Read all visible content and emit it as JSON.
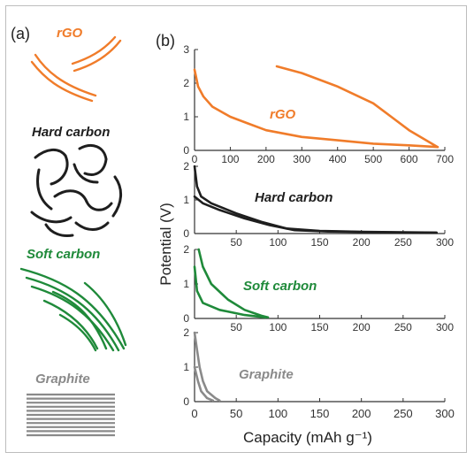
{
  "panel_labels": {
    "a": "(a)",
    "b": "(b)"
  },
  "colors": {
    "rgo": "#f07c2a",
    "hard": "#1e1e1e",
    "soft": "#1f8a3a",
    "graphite": "#8a8a8a",
    "axis": "#333333"
  },
  "materials": [
    {
      "key": "rgo",
      "label": "rGO",
      "color": "#f07c2a",
      "icon": "rgo-sheets-icon"
    },
    {
      "key": "hard",
      "label": "Hard carbon",
      "color": "#1e1e1e",
      "icon": "hard-carbon-network-icon"
    },
    {
      "key": "soft",
      "label": "Soft carbon",
      "color": "#1f8a3a",
      "icon": "soft-carbon-layers-icon"
    },
    {
      "key": "graphite",
      "label": "Graphite",
      "color": "#8a8a8a",
      "icon": "graphite-stack-icon"
    }
  ],
  "chart_data": {
    "type": "line",
    "xlabel": "Capacity (mAh g⁻¹)",
    "ylabel": "Potential (V)",
    "grid": false,
    "panels": [
      {
        "key": "rgo",
        "label": "rGO",
        "color": "#f07c2a",
        "xlim": [
          0,
          700
        ],
        "ylim": [
          0,
          3
        ],
        "xticks": [
          0,
          100,
          200,
          300,
          400,
          500,
          600,
          700
        ],
        "yticks": [
          0,
          1,
          2,
          3
        ],
        "series": [
          {
            "points": [
              [
                0,
                2.4
              ],
              [
                10,
                1.9
              ],
              [
                25,
                1.6
              ],
              [
                50,
                1.3
              ],
              [
                100,
                1.0
              ],
              [
                150,
                0.8
              ],
              [
                200,
                0.6
              ],
              [
                300,
                0.4
              ],
              [
                400,
                0.3
              ],
              [
                500,
                0.2
              ],
              [
                600,
                0.15
              ],
              [
                680,
                0.1
              ]
            ]
          },
          {
            "points": [
              [
                230,
                2.5
              ],
              [
                300,
                2.3
              ],
              [
                400,
                1.9
              ],
              [
                500,
                1.4
              ],
              [
                550,
                1.0
              ],
              [
                600,
                0.6
              ],
              [
                680,
                0.1
              ]
            ]
          }
        ]
      },
      {
        "key": "hard",
        "label": "Hard carbon",
        "color": "#1e1e1e",
        "xlim": [
          0,
          300
        ],
        "ylim": [
          0,
          2
        ],
        "xticks": [
          0,
          50,
          100,
          150,
          200,
          250,
          300
        ],
        "yticks": [
          0,
          1,
          2
        ],
        "series": [
          {
            "points": [
              [
                0,
                2.0
              ],
              [
                3,
                1.4
              ],
              [
                8,
                1.1
              ],
              [
                20,
                0.9
              ],
              [
                50,
                0.6
              ],
              [
                80,
                0.35
              ],
              [
                110,
                0.15
              ],
              [
                150,
                0.08
              ],
              [
                200,
                0.05
              ],
              [
                250,
                0.04
              ],
              [
                290,
                0.03
              ]
            ]
          },
          {
            "points": [
              [
                0,
                1.1
              ],
              [
                10,
                0.9
              ],
              [
                30,
                0.7
              ],
              [
                60,
                0.45
              ],
              [
                90,
                0.25
              ],
              [
                120,
                0.1
              ],
              [
                160,
                0.06
              ],
              [
                220,
                0.04
              ],
              [
                290,
                0.02
              ]
            ]
          }
        ]
      },
      {
        "key": "soft",
        "label": "Soft carbon",
        "color": "#1f8a3a",
        "xlim": [
          0,
          300
        ],
        "ylim": [
          0,
          2
        ],
        "xticks": [
          0,
          50,
          100,
          150,
          200,
          250,
          300
        ],
        "yticks": [
          0,
          1,
          2
        ],
        "series": [
          {
            "points": [
              [
                5,
                2.0
              ],
              [
                10,
                1.5
              ],
              [
                20,
                1.0
              ],
              [
                40,
                0.55
              ],
              [
                60,
                0.25
              ],
              [
                80,
                0.08
              ],
              [
                88,
                0.03
              ]
            ]
          },
          {
            "points": [
              [
                0,
                1.5
              ],
              [
                3,
                0.8
              ],
              [
                10,
                0.45
              ],
              [
                30,
                0.25
              ],
              [
                60,
                0.1
              ],
              [
                85,
                0.03
              ]
            ]
          }
        ]
      },
      {
        "key": "graphite",
        "label": "Graphite",
        "color": "#8a8a8a",
        "xlim": [
          0,
          300
        ],
        "ylim": [
          0,
          2
        ],
        "xticks": [
          0,
          50,
          100,
          150,
          200,
          250,
          300
        ],
        "yticks": [
          0,
          1,
          2
        ],
        "series": [
          {
            "points": [
              [
                0,
                2.0
              ],
              [
                3,
                1.5
              ],
              [
                6,
                1.0
              ],
              [
                10,
                0.6
              ],
              [
                15,
                0.3
              ],
              [
                25,
                0.1
              ],
              [
                30,
                0.03
              ]
            ]
          },
          {
            "points": [
              [
                0,
                1.0
              ],
              [
                4,
                0.6
              ],
              [
                8,
                0.3
              ],
              [
                15,
                0.1
              ],
              [
                22,
                0.03
              ]
            ]
          }
        ]
      }
    ]
  }
}
